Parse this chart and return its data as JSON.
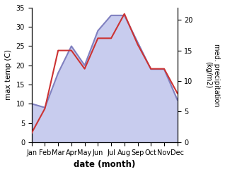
{
  "months": [
    "Jan",
    "Feb",
    "Mar",
    "Apr",
    "May",
    "Jun",
    "Jul",
    "Aug",
    "Sep",
    "Oct",
    "Nov",
    "Dec"
  ],
  "month_positions": [
    0,
    1,
    2,
    3,
    4,
    5,
    6,
    7,
    8,
    9,
    10,
    11
  ],
  "temperature": [
    10,
    9,
    18,
    25,
    20,
    29,
    33,
    33,
    26,
    19,
    19,
    11
  ],
  "precipitation": [
    1.5,
    5.5,
    15,
    15,
    12,
    17,
    17,
    21,
    16,
    12,
    12,
    8
  ],
  "temp_color": "#8080c0",
  "temp_fill_color": "#c8ccee",
  "precip_color": "#cc3333",
  "ylabel_left": "max temp (C)",
  "ylabel_right": "med. precipitation\n(kg/m2)",
  "xlabel": "date (month)",
  "ylim_left": [
    0,
    35
  ],
  "ylim_right": [
    0,
    22
  ],
  "yticks_left": [
    0,
    5,
    10,
    15,
    20,
    25,
    30,
    35
  ],
  "yticks_right": [
    0,
    5,
    10,
    15,
    20
  ],
  "background_color": "#ffffff"
}
